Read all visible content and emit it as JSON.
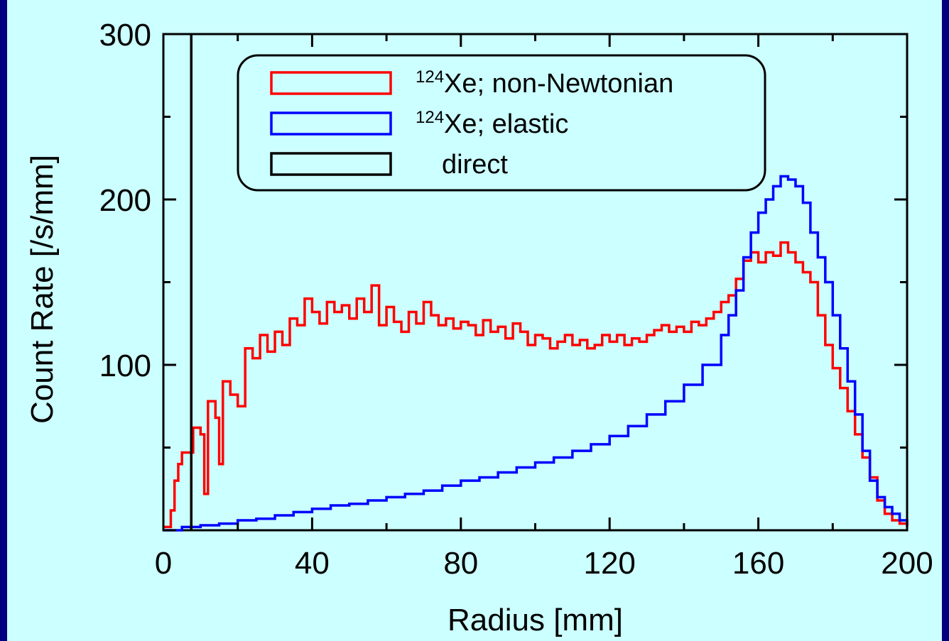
{
  "chart_data": {
    "type": "line",
    "xlabel": "Radius [mm]",
    "ylabel": "Count Rate [/s/mm]",
    "xlim": [
      0,
      200
    ],
    "ylim": [
      0,
      300
    ],
    "x_ticks": [
      "0",
      "40",
      "80",
      "120",
      "160",
      "200"
    ],
    "y_ticks": [
      "",
      "100",
      "200",
      "300"
    ],
    "grid": false,
    "legend_position": "top-center",
    "series": [
      {
        "name_sup": "124",
        "name": "Xe; non-Newtonian",
        "color": "#ff0000",
        "points": [
          [
            0,
            2
          ],
          [
            2,
            12
          ],
          [
            3,
            30
          ],
          [
            4,
            40
          ],
          [
            5,
            47
          ],
          [
            8,
            62
          ],
          [
            10,
            58
          ],
          [
            11,
            22
          ],
          [
            12,
            78
          ],
          [
            14,
            68
          ],
          [
            15,
            40
          ],
          [
            16,
            90
          ],
          [
            18,
            82
          ],
          [
            20,
            75
          ],
          [
            22,
            110
          ],
          [
            24,
            104
          ],
          [
            26,
            118
          ],
          [
            28,
            108
          ],
          [
            30,
            120
          ],
          [
            32,
            112
          ],
          [
            34,
            128
          ],
          [
            36,
            124
          ],
          [
            38,
            140
          ],
          [
            40,
            132
          ],
          [
            42,
            125
          ],
          [
            44,
            138
          ],
          [
            46,
            132
          ],
          [
            48,
            136
          ],
          [
            50,
            128
          ],
          [
            52,
            140
          ],
          [
            54,
            132
          ],
          [
            56,
            148
          ],
          [
            58,
            124
          ],
          [
            60,
            135
          ],
          [
            62,
            126
          ],
          [
            64,
            120
          ],
          [
            66,
            132
          ],
          [
            68,
            125
          ],
          [
            70,
            138
          ],
          [
            72,
            130
          ],
          [
            74,
            124
          ],
          [
            76,
            128
          ],
          [
            78,
            122
          ],
          [
            80,
            126
          ],
          [
            82,
            124
          ],
          [
            84,
            118
          ],
          [
            86,
            127
          ],
          [
            88,
            120
          ],
          [
            90,
            123
          ],
          [
            92,
            116
          ],
          [
            94,
            125
          ],
          [
            96,
            120
          ],
          [
            98,
            112
          ],
          [
            100,
            118
          ],
          [
            102,
            116
          ],
          [
            104,
            110
          ],
          [
            106,
            114
          ],
          [
            108,
            118
          ],
          [
            110,
            112
          ],
          [
            112,
            115
          ],
          [
            114,
            110
          ],
          [
            116,
            112
          ],
          [
            118,
            118
          ],
          [
            120,
            114
          ],
          [
            122,
            118
          ],
          [
            124,
            112
          ],
          [
            126,
            116
          ],
          [
            128,
            114
          ],
          [
            130,
            118
          ],
          [
            132,
            121
          ],
          [
            134,
            124
          ],
          [
            136,
            120
          ],
          [
            138,
            123
          ],
          [
            140,
            120
          ],
          [
            142,
            126
          ],
          [
            144,
            124
          ],
          [
            146,
            128
          ],
          [
            148,
            132
          ],
          [
            150,
            138
          ],
          [
            152,
            142
          ],
          [
            154,
            152
          ],
          [
            156,
            163
          ],
          [
            158,
            168
          ],
          [
            160,
            162
          ],
          [
            162,
            168
          ],
          [
            164,
            166
          ],
          [
            166,
            174
          ],
          [
            168,
            168
          ],
          [
            170,
            162
          ],
          [
            172,
            156
          ],
          [
            174,
            150
          ],
          [
            176,
            130
          ],
          [
            178,
            112
          ],
          [
            180,
            98
          ],
          [
            182,
            86
          ],
          [
            184,
            72
          ],
          [
            186,
            58
          ],
          [
            188,
            44
          ],
          [
            190,
            32
          ],
          [
            192,
            18
          ],
          [
            194,
            10
          ],
          [
            196,
            6
          ],
          [
            198,
            4
          ],
          [
            200,
            2
          ]
        ]
      },
      {
        "name_sup": "124",
        "name": "Xe; elastic",
        "color": "#0000ff",
        "points": [
          [
            0,
            0
          ],
          [
            5,
            2
          ],
          [
            10,
            3
          ],
          [
            15,
            4
          ],
          [
            20,
            6
          ],
          [
            25,
            7
          ],
          [
            30,
            9
          ],
          [
            35,
            11
          ],
          [
            40,
            13
          ],
          [
            45,
            15
          ],
          [
            50,
            16
          ],
          [
            55,
            18
          ],
          [
            60,
            20
          ],
          [
            65,
            22
          ],
          [
            70,
            24
          ],
          [
            75,
            27
          ],
          [
            80,
            30
          ],
          [
            85,
            32
          ],
          [
            90,
            35
          ],
          [
            95,
            38
          ],
          [
            100,
            41
          ],
          [
            105,
            44
          ],
          [
            110,
            48
          ],
          [
            115,
            52
          ],
          [
            120,
            57
          ],
          [
            125,
            63
          ],
          [
            130,
            70
          ],
          [
            135,
            78
          ],
          [
            140,
            88
          ],
          [
            145,
            100
          ],
          [
            150,
            118
          ],
          [
            152,
            130
          ],
          [
            154,
            145
          ],
          [
            156,
            165
          ],
          [
            158,
            180
          ],
          [
            160,
            192
          ],
          [
            162,
            200
          ],
          [
            164,
            208
          ],
          [
            166,
            214
          ],
          [
            168,
            212
          ],
          [
            170,
            208
          ],
          [
            172,
            198
          ],
          [
            174,
            180
          ],
          [
            176,
            165
          ],
          [
            178,
            150
          ],
          [
            180,
            130
          ],
          [
            182,
            110
          ],
          [
            184,
            90
          ],
          [
            186,
            70
          ],
          [
            188,
            48
          ],
          [
            190,
            30
          ],
          [
            192,
            20
          ],
          [
            194,
            14
          ],
          [
            196,
            10
          ],
          [
            198,
            6
          ],
          [
            200,
            3
          ]
        ]
      },
      {
        "name": "direct",
        "color": "#000000",
        "points": [
          [
            7.5,
            0
          ],
          [
            7.5,
            300
          ]
        ]
      }
    ]
  }
}
